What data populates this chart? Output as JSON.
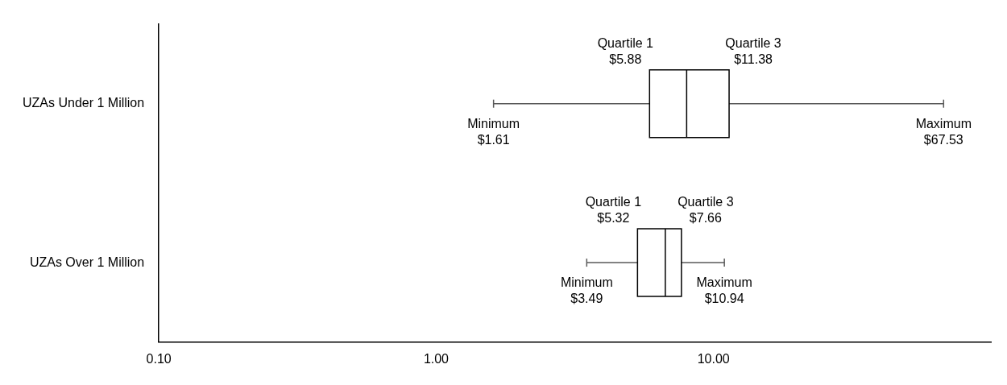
{
  "chart_data": {
    "type": "box",
    "orientation": "horizontal",
    "log": "x",
    "grid": false,
    "legend": false,
    "categories": [
      "UZAs Under 1 Million",
      "UZAs Over 1 Million"
    ],
    "boxes": [
      {
        "low": 1.61,
        "q1": 5.88,
        "median": 8.0,
        "q3": 11.38,
        "high": 67.53
      },
      {
        "low": 3.49,
        "q1": 5.32,
        "median": 6.7,
        "q3": 7.66,
        "high": 10.94
      }
    ],
    "color": "#000000",
    "xlim": [
      0.1,
      100
    ],
    "xticks": [
      {
        "value": 0.1,
        "label": "0.10"
      },
      {
        "value": 1,
        "label": "1.00"
      },
      {
        "value": 10,
        "label": "10.00"
      }
    ],
    "annotations": [
      {
        "text": "Quartile 1\n$5.88",
        "x": 5.88,
        "y": "UZAs Under 1 Million"
      },
      {
        "text": "Quartile 3\n$11.38",
        "x": 11.38,
        "y": "UZAs Under 1 Million"
      },
      {
        "text": "Minimum\n$1.61",
        "x": 1.61,
        "y": "UZAs Under 1 Million"
      },
      {
        "text": "Maximum\n$67.53",
        "x": 67.53,
        "y": "UZAs Under 1 Million"
      },
      {
        "text": "Quartile 1\n$5.32",
        "x": 5.32,
        "y": "UZAs Over 1 Million"
      },
      {
        "text": "Quartile 3\n$7.66",
        "x": 7.66,
        "y": "UZAs Over 1 Million"
      },
      {
        "text": "Minimum\n$3.49",
        "x": 3.49,
        "y": "UZAs Over 1 Million"
      },
      {
        "text": "Maximum\n$10.94",
        "x": 10.94,
        "y": "UZAs Over 1 Million"
      }
    ]
  }
}
